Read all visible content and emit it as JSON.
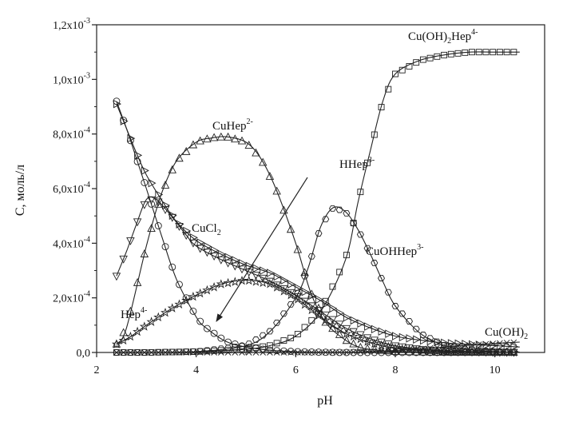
{
  "chart_data": {
    "type": "line",
    "title": "",
    "xlabel": "pH",
    "ylabel": "C, моль/л",
    "xlim": [
      2,
      11
    ],
    "ylim": [
      0,
      0.0012
    ],
    "xticks": [
      {
        "value": 2,
        "label": "2"
      },
      {
        "value": 4,
        "label": "4"
      },
      {
        "value": 6,
        "label": "6"
      },
      {
        "value": 8,
        "label": "8"
      },
      {
        "value": 10,
        "label": "10"
      }
    ],
    "yticks": [
      {
        "value": 0,
        "base": "0,0",
        "exp": ""
      },
      {
        "value": 0.0002,
        "base": "2,0x10",
        "exp": "-4"
      },
      {
        "value": 0.0004,
        "base": "4,0x10",
        "exp": "-4"
      },
      {
        "value": 0.0006,
        "base": "6,0x10",
        "exp": "-4"
      },
      {
        "value": 0.0008,
        "base": "8,0x10",
        "exp": "-4"
      },
      {
        "value": 0.001,
        "base": "1,0x10",
        "exp": "-3"
      },
      {
        "value": 0.0012,
        "base": "1,2x10",
        "exp": "-3"
      }
    ],
    "grid": false,
    "legend": "none",
    "series": [
      {
        "key": "cu_oh2_hep",
        "marker": "square",
        "x": [
          2.4,
          3,
          4,
          5,
          5.5,
          6,
          6.5,
          7,
          7.25,
          7.5,
          7.75,
          8,
          8.5,
          9,
          9.5,
          10,
          10.5
        ],
        "y": [
          0,
          0,
          3e-06,
          1.2e-05,
          2.6e-05,
          6e-05,
          0.00015,
          0.00034,
          0.00055,
          0.00074,
          0.00092,
          0.00102,
          0.00107,
          0.00109,
          0.0011,
          0.0011,
          0.0011
        ]
      },
      {
        "key": "cu_hep",
        "marker": "triangle-up",
        "x": [
          2.4,
          2.6,
          3,
          3.3,
          3.6,
          4,
          4.3,
          4.6,
          5,
          5.3,
          5.6,
          6,
          6.3,
          6.6,
          7,
          7.3,
          7.6,
          8,
          8.5,
          9,
          10,
          10.5
        ],
        "y": [
          3e-05,
          9e-05,
          0.00039,
          0.00058,
          0.0007,
          0.00077,
          0.000785,
          0.00079,
          0.00077,
          0.00071,
          0.0006,
          0.0004,
          0.00022,
          0.00011,
          4.5e-05,
          1.8e-05,
          9e-06,
          3e-06,
          1e-06,
          0,
          0,
          0
        ]
      },
      {
        "key": "hhep",
        "marker": "circle",
        "x": [
          2.4,
          2.6,
          2.8,
          3,
          3.3,
          3.6,
          4,
          4.2,
          4.6,
          5,
          5.5,
          6,
          6.5,
          7,
          8,
          9,
          10.5
        ],
        "y": [
          0.00092,
          0.00082,
          0.00071,
          0.0006,
          0.00043,
          0.00027,
          0.00013,
          9e-05,
          4e-05,
          2e-05,
          8e-06,
          3e-06,
          1e-06,
          0,
          0,
          0,
          0
        ]
      },
      {
        "key": "cucl2",
        "marker": "triangle-right",
        "x": [
          2.4,
          2.6,
          2.8,
          3,
          3.3,
          3.6,
          4,
          4.5,
          5,
          5.5,
          6,
          6.5,
          7,
          7.5,
          8,
          8.5,
          9,
          10,
          10.5
        ],
        "y": [
          0.00091,
          0.00082,
          0.00073,
          0.00065,
          0.00056,
          0.00048,
          0.00041,
          0.00036,
          0.00032,
          0.00029,
          0.00024,
          0.00019,
          0.00013,
          9e-05,
          6e-05,
          4.5e-05,
          3.5e-05,
          2.5e-05,
          2e-05
        ]
      },
      {
        "key": "cuoh_hep",
        "marker": "hexagon",
        "x": [
          2.4,
          3,
          4,
          5,
          5.5,
          6,
          6.25,
          6.5,
          6.75,
          7,
          7.25,
          7.5,
          7.75,
          8,
          8.5,
          9,
          9.5,
          10,
          10.5
        ],
        "y": [
          0,
          0,
          3e-06,
          2.5e-05,
          8e-05,
          0.0002,
          0.00031,
          0.00046,
          0.00053,
          0.000515,
          0.00045,
          0.00036,
          0.00026,
          0.00017,
          7e-05,
          2.5e-05,
          1e-05,
          3e-06,
          1e-06
        ]
      },
      {
        "key": "hep",
        "marker": "star",
        "x": [
          2.4,
          2.7,
          3,
          3.5,
          4,
          4.5,
          5,
          5.5,
          6,
          6.5,
          7,
          7.5,
          8,
          8.5,
          9,
          10,
          10.5
        ],
        "y": [
          3e-05,
          6e-05,
          0.0001,
          0.00016,
          0.00021,
          0.00025,
          0.000265,
          0.00025,
          0.0002,
          0.00013,
          7e-05,
          3.5e-05,
          1.5e-05,
          7e-06,
          3e-06,
          1e-06,
          0
        ]
      },
      {
        "key": "tri_down",
        "marker": "triangle-down",
        "x": [
          2.4,
          2.6,
          2.8,
          3,
          3.2,
          3.5,
          3.8,
          4,
          4.5,
          5,
          5.5,
          6,
          6.5,
          7,
          7.5,
          8,
          8.5,
          9,
          10,
          10.5
        ],
        "y": [
          0.00028,
          0.00037,
          0.00047,
          0.00056,
          0.00056,
          0.0005,
          0.00043,
          0.00039,
          0.00034,
          0.0003,
          0.00026,
          0.00021,
          0.00015,
          9e-05,
          5e-05,
          2.5e-05,
          1.2e-05,
          6e-06,
          2e-06,
          1e-06
        ]
      },
      {
        "key": "cu_oh2",
        "marker": "cross",
        "x": [
          2.4,
          4,
          6,
          7,
          7.5,
          8,
          8.5,
          9,
          9.5,
          10,
          10.5
        ],
        "y": [
          0,
          0,
          0,
          1e-06,
          3e-06,
          7e-06,
          1.3e-05,
          2e-05,
          2.7e-05,
          3.3e-05,
          3.8e-05
        ]
      }
    ],
    "labels": [
      {
        "key": "cu_oh2_hep",
        "parts": [
          "Cu(OH)",
          {
            "sub": "2"
          },
          "Hep",
          {
            "sup": "4-"
          }
        ]
      },
      {
        "key": "cu_hep",
        "parts": [
          "CuHep",
          {
            "sup": "2-"
          }
        ]
      },
      {
        "key": "hhep",
        "parts": [
          "HHep",
          {
            "sup": "3-"
          }
        ]
      },
      {
        "key": "cucl2",
        "parts": [
          "CuCl",
          {
            "sub": "2"
          }
        ]
      },
      {
        "key": "cuoh_hep",
        "parts": [
          "CuOHHep",
          {
            "sup": "3-"
          }
        ]
      },
      {
        "key": "hep",
        "parts": [
          "Hep",
          {
            "sup": "4-"
          }
        ]
      },
      {
        "key": "cu_oh2",
        "parts": [
          "Cu(OH)",
          {
            "sub": "2"
          }
        ]
      }
    ]
  }
}
